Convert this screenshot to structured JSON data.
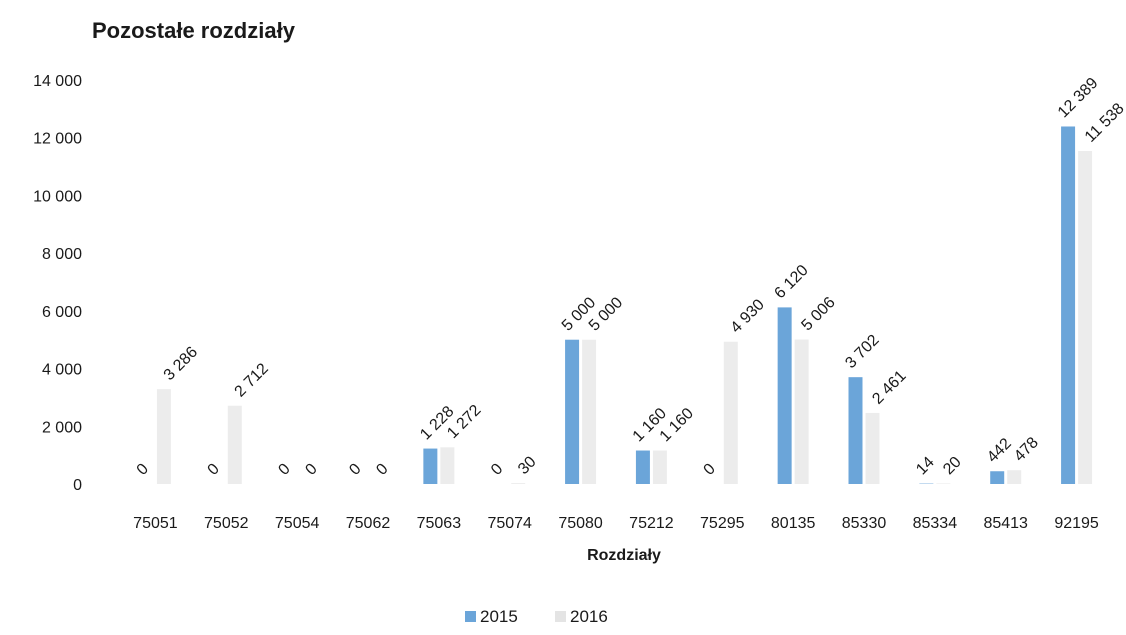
{
  "chart_data": {
    "type": "bar",
    "title": "Pozostałe rozdziały",
    "xlabel": "Rozdziały",
    "ylabel": "",
    "ylim": [
      0,
      14000
    ],
    "yticks": [
      0,
      2000,
      4000,
      6000,
      8000,
      10000,
      12000,
      14000
    ],
    "ytick_labels": [
      "0",
      "2 000",
      "4 000",
      "6 000",
      "8 000",
      "10 000",
      "12 000",
      "14 000"
    ],
    "categories": [
      "75051",
      "75052",
      "75054",
      "75062",
      "75063",
      "75074",
      "75080",
      "75212",
      "75295",
      "80135",
      "85330",
      "85334",
      "85413",
      "92195"
    ],
    "series": [
      {
        "name": "2015",
        "color": "#5b9bd5",
        "values": [
          0,
          0,
          0,
          0,
          1228,
          0,
          5000,
          1160,
          0,
          6120,
          3702,
          14,
          442,
          12389
        ],
        "labels": [
          "0",
          "0",
          "0",
          "0",
          "1 228",
          "0",
          "5 000",
          "1 160",
          "0",
          "6 120",
          "3 702",
          "14",
          "442",
          "12 389"
        ]
      },
      {
        "name": "2016",
        "color": "#c9c9c9",
        "values": [
          3286,
          2712,
          0,
          0,
          1272,
          30,
          5000,
          1160,
          4930,
          5006,
          2461,
          20,
          478,
          11538
        ],
        "labels": [
          "3 286",
          "2 712",
          "0",
          "0",
          "1 272",
          "30",
          "5 000",
          "1 160",
          "4 930",
          "5 006",
          "2 461",
          "20",
          "478",
          "11 538"
        ]
      }
    ],
    "grid": false,
    "legend_position": "bottom"
  }
}
